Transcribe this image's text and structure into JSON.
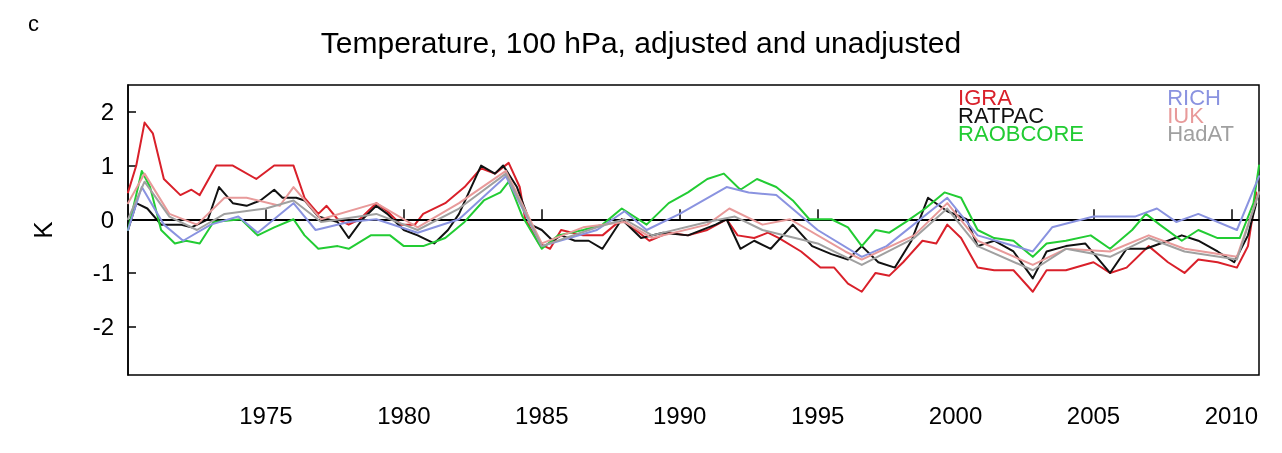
{
  "chart_data": {
    "type": "line",
    "title": "Temperature, 100 hPa, adjusted and unadjusted",
    "ylabel": "K",
    "annotations": [
      "c"
    ],
    "xlim": [
      1970,
      2011
    ],
    "xticks": [
      1975,
      1980,
      1985,
      1990,
      1995,
      2000,
      2005,
      2010
    ],
    "ylim": [
      -2.9,
      2.5
    ],
    "yticks": [
      -2,
      -1,
      0,
      1,
      2
    ],
    "grid": false,
    "legend": "top right",
    "marker": "none",
    "line_style": "solid",
    "ref_lines": [
      {
        "axis": "y",
        "value": 0,
        "color": "#000000"
      }
    ],
    "series": [
      {
        "name": "IGRA",
        "color": "#d9202a",
        "x": [
          1970.0,
          1970.3,
          1970.6,
          1970.9,
          1971.3,
          1971.9,
          1972.3,
          1972.6,
          1973.2,
          1973.8,
          1974.65,
          1975.3,
          1976.0,
          1976.4,
          1976.9,
          1977.2,
          1977.6,
          1978.0,
          1978.4,
          1979.0,
          1979.4,
          1979.9,
          1980.4,
          1980.7,
          1981.5,
          1982.2,
          1982.8,
          1983.3,
          1983.8,
          1984.2,
          1984.4,
          1984.9,
          1985.3,
          1985.7,
          1986.5,
          1987.2,
          1987.9,
          1988.4,
          1988.9,
          1989.6,
          1990.3,
          1991.0,
          1991.7,
          1992.1,
          1992.7,
          1993.2,
          1993.6,
          1994.4,
          1995.1,
          1995.6,
          1996.1,
          1996.6,
          1997.1,
          1997.6,
          1998.1,
          1998.8,
          1999.3,
          1999.7,
          2000.2,
          2000.8,
          2001.4,
          2002.1,
          2002.8,
          2003.3,
          2004.0,
          2005.0,
          2005.6,
          2006.2,
          2007.0,
          2007.7,
          2008.3,
          2008.8,
          2009.5,
          2010.2,
          2010.6,
          2010.9
        ],
        "values": [
          0.5,
          1.0,
          1.8,
          1.6,
          0.75,
          0.45,
          0.55,
          0.45,
          1.0,
          1.0,
          0.75,
          1.0,
          1.0,
          0.4,
          0.1,
          0.25,
          0.0,
          -0.1,
          0.0,
          0.3,
          0.15,
          -0.1,
          -0.1,
          0.1,
          0.3,
          0.6,
          0.95,
          0.85,
          1.05,
          0.6,
          0.0,
          -0.45,
          -0.55,
          -0.2,
          -0.3,
          -0.3,
          0.0,
          -0.2,
          -0.4,
          -0.25,
          -0.3,
          -0.2,
          0.0,
          -0.3,
          -0.35,
          -0.25,
          -0.35,
          -0.6,
          -0.9,
          -0.9,
          -1.2,
          -1.35,
          -1.0,
          -1.05,
          -0.8,
          -0.4,
          -0.45,
          -0.1,
          -0.35,
          -0.9,
          -0.95,
          -0.95,
          -1.35,
          -0.95,
          -0.95,
          -0.8,
          -1.0,
          -0.9,
          -0.5,
          -0.8,
          -1.0,
          -0.75,
          -0.8,
          -0.9,
          -0.5,
          0.5
        ]
      },
      {
        "name": "RATPAC",
        "color": "#111111",
        "x": [
          1970.0,
          1970.3,
          1970.7,
          1971.2,
          1971.9,
          1972.3,
          1972.9,
          1973.3,
          1973.8,
          1974.3,
          1974.8,
          1975.3,
          1975.6,
          1976.1,
          1976.4,
          1976.9,
          1977.6,
          1978.0,
          1978.5,
          1979.0,
          1979.4,
          1980.0,
          1980.5,
          1981.1,
          1981.6,
          1982.0,
          1982.8,
          1983.3,
          1983.6,
          1984.1,
          1984.6,
          1985.0,
          1985.4,
          1985.7,
          1986.2,
          1986.7,
          1987.2,
          1987.9,
          1988.6,
          1989.4,
          1990.3,
          1991.3,
          1991.7,
          1992.2,
          1992.7,
          1993.3,
          1994.1,
          1994.8,
          1995.5,
          1996.1,
          1996.6,
          1997.2,
          1997.8,
          1998.4,
          1999.0,
          1999.7,
          2000.4,
          2000.8,
          2001.4,
          2002.1,
          2002.8,
          2003.3,
          2004.0,
          2004.7,
          2005.6,
          2006.2,
          2006.9,
          2007.7,
          2008.2,
          2008.8,
          2009.5,
          2010.1,
          2010.6,
          2010.9
        ],
        "values": [
          -0.2,
          0.3,
          0.2,
          -0.1,
          -0.1,
          -0.15,
          0.0,
          0.6,
          0.3,
          0.25,
          0.35,
          0.55,
          0.4,
          0.4,
          0.35,
          0.05,
          -0.05,
          -0.35,
          0.0,
          0.25,
          0.1,
          -0.2,
          -0.3,
          -0.45,
          -0.2,
          0.1,
          1.0,
          0.85,
          1.0,
          0.6,
          -0.1,
          -0.2,
          -0.4,
          -0.3,
          -0.4,
          -0.4,
          -0.55,
          0.0,
          -0.35,
          -0.25,
          -0.3,
          -0.1,
          0.0,
          -0.55,
          -0.4,
          -0.55,
          -0.1,
          -0.5,
          -0.65,
          -0.75,
          -0.5,
          -0.8,
          -0.9,
          -0.4,
          0.4,
          0.15,
          0.0,
          -0.5,
          -0.4,
          -0.6,
          -1.1,
          -0.6,
          -0.5,
          -0.45,
          -1.0,
          -0.55,
          -0.55,
          -0.4,
          -0.3,
          -0.4,
          -0.6,
          -0.8,
          -0.3,
          0.3
        ]
      },
      {
        "name": "RAOBCORE",
        "color": "#22cc33",
        "x": [
          1970.0,
          1970.5,
          1970.8,
          1971.2,
          1971.7,
          1972.1,
          1972.6,
          1973.1,
          1974.1,
          1974.7,
          1975.3,
          1976.0,
          1976.4,
          1976.9,
          1977.6,
          1978.0,
          1978.8,
          1979.5,
          1980.0,
          1980.7,
          1981.5,
          1982.2,
          1982.9,
          1983.5,
          1983.8,
          1984.3,
          1985.0,
          1985.6,
          1986.5,
          1987.2,
          1987.9,
          1988.8,
          1989.6,
          1990.3,
          1991.0,
          1991.6,
          1992.2,
          1992.8,
          1993.5,
          1994.1,
          1994.7,
          1995.5,
          1996.1,
          1996.6,
          1997.1,
          1997.6,
          1998.2,
          1998.9,
          1999.6,
          2000.2,
          2000.8,
          2001.4,
          2002.1,
          2002.8,
          2003.3,
          2004.0,
          2004.9,
          2005.6,
          2006.4,
          2006.9,
          2007.4,
          2008.2,
          2008.8,
          2009.5,
          2010.3,
          2010.8,
          2011.0
        ],
        "values": [
          -0.2,
          0.9,
          0.6,
          -0.2,
          -0.45,
          -0.4,
          -0.45,
          -0.05,
          0.0,
          -0.3,
          -0.15,
          0.0,
          -0.3,
          -0.55,
          -0.5,
          -0.55,
          -0.3,
          -0.3,
          -0.5,
          -0.5,
          -0.35,
          -0.05,
          0.35,
          0.5,
          0.7,
          0.05,
          -0.55,
          -0.3,
          -0.2,
          -0.1,
          0.2,
          -0.1,
          0.3,
          0.5,
          0.75,
          0.85,
          0.55,
          0.75,
          0.6,
          0.35,
          0.0,
          0.0,
          -0.15,
          -0.5,
          -0.2,
          -0.25,
          -0.05,
          0.2,
          0.5,
          0.4,
          -0.2,
          -0.35,
          -0.4,
          -0.7,
          -0.45,
          -0.4,
          -0.3,
          -0.55,
          -0.2,
          0.1,
          -0.1,
          -0.4,
          -0.2,
          -0.35,
          -0.35,
          0.3,
          1.0
        ]
      },
      {
        "name": "RICH",
        "color": "#8a93e0",
        "x": [
          1970.0,
          1970.5,
          1971.3,
          1972.0,
          1973.0,
          1974.0,
          1974.7,
          1976.0,
          1976.8,
          1978.0,
          1979.0,
          1980.5,
          1982.0,
          1983.7,
          1985.0,
          1987.0,
          1988.0,
          1988.8,
          1990.0,
          1991.7,
          1992.5,
          1993.5,
          1995.0,
          1996.6,
          1997.5,
          1999.7,
          2000.8,
          2002.8,
          2003.5,
          2005.0,
          2006.5,
          2007.3,
          2008.0,
          2008.8,
          2010.2,
          2011.0
        ],
        "values": [
          -0.2,
          0.6,
          -0.1,
          -0.4,
          -0.1,
          0.05,
          -0.25,
          0.3,
          -0.2,
          -0.05,
          0.0,
          -0.25,
          0.0,
          0.8,
          -0.5,
          -0.2,
          0.15,
          -0.2,
          0.1,
          0.6,
          0.5,
          0.45,
          -0.2,
          -0.7,
          -0.5,
          0.4,
          -0.3,
          -0.6,
          -0.15,
          0.05,
          0.05,
          0.2,
          -0.05,
          0.1,
          -0.2,
          0.8
        ]
      },
      {
        "name": "IUK",
        "color": "#e89a9a",
        "x": [
          1970.0,
          1970.6,
          1971.5,
          1972.5,
          1973.5,
          1974.3,
          1975.5,
          1976.0,
          1977.0,
          1979.0,
          1980.5,
          1982.0,
          1983.7,
          1985.0,
          1986.5,
          1988.0,
          1989.0,
          1991.0,
          1991.8,
          1993.0,
          1994.0,
          1996.0,
          1996.6,
          1998.5,
          1999.7,
          2000.8,
          2002.8,
          2004.0,
          2005.6,
          2007.0,
          2008.3,
          2010.2,
          2011.0
        ],
        "values": [
          0.3,
          0.85,
          0.1,
          -0.1,
          0.4,
          0.4,
          0.25,
          0.6,
          0.0,
          0.3,
          -0.15,
          0.3,
          0.9,
          -0.45,
          -0.15,
          -0.05,
          -0.35,
          -0.1,
          0.2,
          -0.1,
          0.0,
          -0.6,
          -0.75,
          -0.3,
          0.3,
          -0.4,
          -0.85,
          -0.55,
          -0.6,
          -0.3,
          -0.55,
          -0.7,
          0.5
        ]
      },
      {
        "name": "HadAT",
        "color": "#a0a0a0",
        "x": [
          1970.0,
          1970.6,
          1971.5,
          1972.5,
          1973.5,
          1975.0,
          1976.0,
          1977.0,
          1979.0,
          1980.5,
          1982.0,
          1983.7,
          1985.0,
          1987.0,
          1988.0,
          1989.0,
          1991.0,
          1992.0,
          1993.0,
          1995.0,
          1996.6,
          1998.5,
          1999.7,
          2000.8,
          2002.8,
          2004.0,
          2005.6,
          2007.0,
          2008.3,
          2010.2,
          2011.0
        ],
        "values": [
          0.0,
          0.7,
          0.05,
          -0.2,
          0.1,
          0.2,
          0.35,
          -0.05,
          0.1,
          -0.2,
          0.2,
          0.85,
          -0.5,
          -0.15,
          0.0,
          -0.3,
          -0.05,
          0.05,
          -0.2,
          -0.45,
          -0.85,
          -0.35,
          0.2,
          -0.5,
          -0.95,
          -0.55,
          -0.7,
          -0.35,
          -0.6,
          -0.75,
          0.5
        ]
      }
    ]
  }
}
